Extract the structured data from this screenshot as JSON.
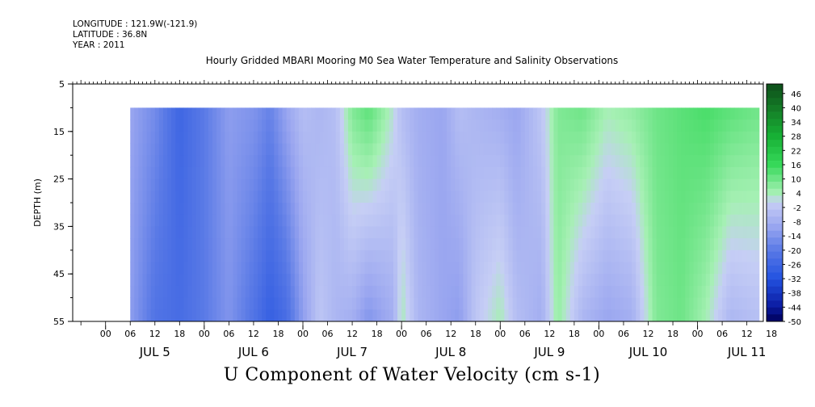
{
  "header": {
    "longitude": "LONGITUDE : 121.9W(-121.9)",
    "latitude": "LATITUDE : 36.8N",
    "year": "YEAR : 2011"
  },
  "chart_data": {
    "type": "heatmap",
    "title": "Hourly Gridded MBARI Mooring M0 Sea Water Temperature and Salinity Observations",
    "variable": "U Component of Water Velocity (cm s-1)",
    "ylabel": "DEPTH (m)",
    "xlabel": "",
    "y_axis": {
      "range": [
        5,
        55
      ],
      "inverted": true,
      "ticks": [
        5,
        15,
        25,
        35,
        45,
        55
      ]
    },
    "x_axis": {
      "range_hours": [
        -8,
        160
      ],
      "hour_tick_labels": [
        "00",
        "06",
        "12",
        "18",
        "00",
        "06",
        "12",
        "18",
        "00",
        "06",
        "12",
        "18",
        "00",
        "06",
        "12",
        "18",
        "00",
        "06",
        "12",
        "18",
        "00",
        "06",
        "12",
        "18",
        "00",
        "06",
        "12",
        "18"
      ],
      "day_labels": [
        "JUL  5",
        "JUL  6",
        "JUL  7",
        "JUL  8",
        "JUL  9",
        "JUL 10",
        "JUL 11"
      ]
    },
    "data_extent": {
      "start_hour": 6,
      "end_hour": 159,
      "top_depth": 10,
      "bottom_depth": 55
    },
    "colorbar": {
      "labels": [
        "46",
        "40",
        "34",
        "28",
        "22",
        "16",
        "10",
        "4",
        "-2",
        "-8",
        "-14",
        "-20",
        "-26",
        "-32",
        "-38",
        "-44",
        "-50"
      ],
      "range": [
        -50,
        50
      ],
      "colors": [
        {
          "value": 50,
          "color": "#0d4d1a"
        },
        {
          "value": 40,
          "color": "#147a26"
        },
        {
          "value": 28,
          "color": "#17b035"
        },
        {
          "value": 16,
          "color": "#36d95a"
        },
        {
          "value": 4,
          "color": "#a6f0b4"
        },
        {
          "value": 0,
          "color": "#c6cef5"
        },
        {
          "value": -10,
          "color": "#9aa6f0"
        },
        {
          "value": -20,
          "color": "#5a7ae6"
        },
        {
          "value": -32,
          "color": "#2352e0"
        },
        {
          "value": -44,
          "color": "#0a1aa0"
        },
        {
          "value": -50,
          "color": "#00005a"
        }
      ]
    },
    "velocity_profile": [
      {
        "hour": 6,
        "surface": -10,
        "bottom": -12
      },
      {
        "hour": 12,
        "surface": -16,
        "bottom": -22
      },
      {
        "hour": 18,
        "surface": -26,
        "bottom": -24
      },
      {
        "hour": 24,
        "surface": -20,
        "bottom": -20
      },
      {
        "hour": 30,
        "surface": -12,
        "bottom": -14
      },
      {
        "hour": 36,
        "surface": -14,
        "bottom": -22
      },
      {
        "hour": 40,
        "surface": -18,
        "bottom": -28
      },
      {
        "hour": 44,
        "surface": -10,
        "bottom": -24
      },
      {
        "hour": 48,
        "surface": -4,
        "bottom": -12
      },
      {
        "hour": 52,
        "surface": -6,
        "bottom": -2
      },
      {
        "hour": 56,
        "surface": -4,
        "bottom": -6
      },
      {
        "hour": 60,
        "surface": 8,
        "bottom": -8
      },
      {
        "hour": 64,
        "surface": 12,
        "bottom": -14
      },
      {
        "hour": 70,
        "surface": 2,
        "bottom": -8
      },
      {
        "hour": 72,
        "surface": -4,
        "bottom": 4
      },
      {
        "hour": 76,
        "surface": -8,
        "bottom": -6
      },
      {
        "hour": 82,
        "surface": -10,
        "bottom": -10
      },
      {
        "hour": 86,
        "surface": -4,
        "bottom": -12
      },
      {
        "hour": 90,
        "surface": -6,
        "bottom": -2
      },
      {
        "hour": 96,
        "surface": -8,
        "bottom": 4
      },
      {
        "hour": 100,
        "surface": -10,
        "bottom": -4
      },
      {
        "hour": 106,
        "surface": -2,
        "bottom": -8
      },
      {
        "hour": 110,
        "surface": 8,
        "bottom": 6
      },
      {
        "hour": 116,
        "surface": 10,
        "bottom": -6
      },
      {
        "hour": 122,
        "surface": 4,
        "bottom": -10
      },
      {
        "hour": 128,
        "surface": 6,
        "bottom": -8
      },
      {
        "hour": 134,
        "surface": 10,
        "bottom": 8
      },
      {
        "hour": 140,
        "surface": 12,
        "bottom": 10
      },
      {
        "hour": 146,
        "surface": 14,
        "bottom": 4
      },
      {
        "hour": 152,
        "surface": 12,
        "bottom": -6
      },
      {
        "hour": 158,
        "surface": 10,
        "bottom": -4
      }
    ]
  }
}
